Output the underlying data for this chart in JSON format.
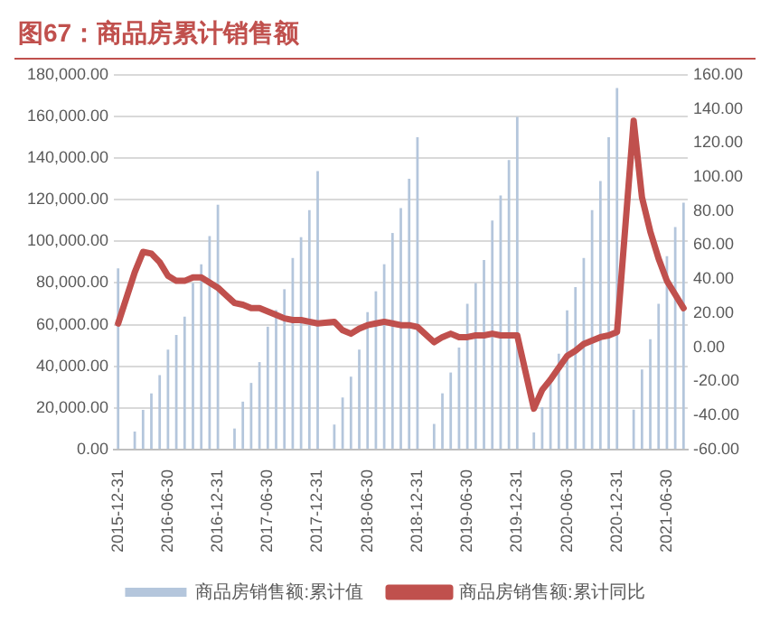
{
  "chart_data": {
    "type": "bar",
    "title": "图67：商品房累计销售额",
    "categories": [
      "2015-12-31",
      null,
      null,
      null,
      null,
      null,
      "2016-06-30",
      null,
      null,
      null,
      null,
      null,
      "2016-12-31",
      null,
      null,
      null,
      null,
      null,
      "2017-06-30",
      null,
      null,
      null,
      null,
      null,
      "2017-12-31",
      null,
      null,
      null,
      null,
      null,
      "2018-06-30",
      null,
      null,
      null,
      null,
      null,
      "2018-12-31",
      null,
      null,
      null,
      null,
      null,
      "2019-06-30",
      null,
      null,
      null,
      null,
      null,
      "2019-12-31",
      null,
      null,
      null,
      null,
      null,
      "2020-06-30",
      null,
      null,
      null,
      null,
      null,
      "2020-12-31",
      null,
      null,
      null,
      null,
      null,
      "2021-06-30",
      null,
      null
    ],
    "series": [
      {
        "name": "商品房销售额:累计值",
        "color": "#b4c6dc",
        "values": [
          87000,
          null,
          8600,
          19000,
          27000,
          35700,
          48000,
          55000,
          63800,
          80000,
          89000,
          102500,
          117600,
          null,
          10100,
          23000,
          32000,
          42000,
          59000,
          67000,
          77000,
          92000,
          102000,
          115000,
          133700,
          null,
          12000,
          25000,
          35000,
          48000,
          66000,
          76000,
          89000,
          104000,
          116000,
          130000,
          150000,
          null,
          12300,
          27000,
          37000,
          49000,
          70000,
          80000,
          91000,
          110000,
          122000,
          139000,
          159700,
          null,
          8200,
          20400,
          33000,
          46000,
          66900,
          78000,
          92000,
          115000,
          129000,
          150000,
          173600,
          null,
          19200,
          38400,
          53000,
          70000,
          92900,
          106900,
          118600
        ]
      },
      {
        "name": "商品房销售额:累计同比",
        "type": "line",
        "axis": "y2",
        "color": "#c0504d",
        "values": [
          14,
          null,
          44,
          56,
          55,
          50,
          42,
          39,
          39,
          41,
          41,
          38,
          35,
          null,
          26,
          25,
          23,
          23,
          21,
          19,
          17,
          16,
          16,
          15,
          14,
          null,
          15,
          10,
          8,
          11,
          13,
          14,
          15,
          14,
          13,
          13,
          12,
          null,
          3,
          6,
          8,
          6,
          6,
          7,
          7,
          8,
          7,
          7,
          7,
          null,
          -36,
          -25,
          -19,
          -12,
          -5,
          -2,
          2,
          4,
          6,
          7,
          9,
          null,
          133,
          88,
          68,
          52,
          39,
          31,
          23
        ]
      }
    ],
    "ylim": [
      0,
      180000
    ],
    "yticks": [
      {
        "value": 0,
        "label": "0.00"
      },
      {
        "value": 20000,
        "label": "20,000.00"
      },
      {
        "value": 40000,
        "label": "40,000.00"
      },
      {
        "value": 60000,
        "label": "60,000.00"
      },
      {
        "value": 80000,
        "label": "80,000.00"
      },
      {
        "value": 100000,
        "label": "100,000.00"
      },
      {
        "value": 120000,
        "label": "120,000.00"
      },
      {
        "value": 140000,
        "label": "140,000.00"
      },
      {
        "value": 160000,
        "label": "160,000.00"
      },
      {
        "value": 180000,
        "label": "180,000.00"
      }
    ],
    "y2lim": [
      -60,
      160
    ],
    "y2ticks": [
      {
        "value": -60,
        "label": "-60.00"
      },
      {
        "value": -40,
        "label": "-40.00"
      },
      {
        "value": -20,
        "label": "-20.00"
      },
      {
        "value": 0,
        "label": "0.00"
      },
      {
        "value": 20,
        "label": "20.00"
      },
      {
        "value": 40,
        "label": "40.00"
      },
      {
        "value": 60,
        "label": "60.00"
      },
      {
        "value": 80,
        "label": "80.00"
      },
      {
        "value": 100,
        "label": "100.00"
      },
      {
        "value": 120,
        "label": "120.00"
      },
      {
        "value": 140,
        "label": "140.00"
      },
      {
        "value": 160,
        "label": "160.00"
      }
    ],
    "grid": "y",
    "legend": "bottom",
    "marker": "none",
    "line_style": "solid"
  }
}
